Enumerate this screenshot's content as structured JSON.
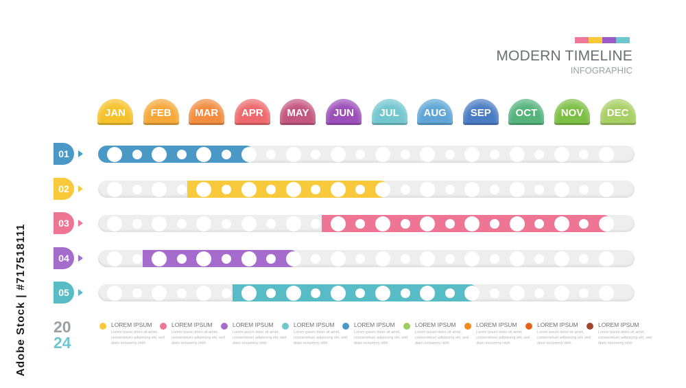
{
  "stock_id": "Adobe Stock | #717518111",
  "header": {
    "title": "MODERN TIMELINE",
    "subtitle": "INFOGRAPHIC",
    "color_strip": [
      "#f0789a",
      "#f9c93c",
      "#9b5cc9",
      "#6ec6cf"
    ]
  },
  "months": [
    {
      "label": "JAN",
      "color": "#f6c22c"
    },
    {
      "label": "FEB",
      "color": "#f6a83a"
    },
    {
      "label": "MAR",
      "color": "#f28c3e"
    },
    {
      "label": "APR",
      "color": "#ee6a6e"
    },
    {
      "label": "MAY",
      "color": "#c4577e"
    },
    {
      "label": "JUN",
      "color": "#9b4fb8"
    },
    {
      "label": "JUL",
      "color": "#74c6cf"
    },
    {
      "label": "AUG",
      "color": "#5fa6d6"
    },
    {
      "label": "SEP",
      "color": "#4a7cc4"
    },
    {
      "label": "OCT",
      "color": "#55b37c"
    },
    {
      "label": "NOV",
      "color": "#7dbf45"
    },
    {
      "label": "DEC",
      "color": "#a8cf63"
    }
  ],
  "rows": [
    {
      "label": "01",
      "color": "#4a98c6",
      "start_month": 0,
      "end_month": 3
    },
    {
      "label": "02",
      "color": "#f8c93a",
      "start_month": 2,
      "end_month": 6
    },
    {
      "label": "03",
      "color": "#ee7593",
      "start_month": 5,
      "end_month": 11
    },
    {
      "label": "04",
      "color": "#a66ccd",
      "start_month": 1,
      "end_month": 4
    },
    {
      "label": "05",
      "color": "#58bcc6",
      "start_month": 3,
      "end_month": 8
    }
  ],
  "year": {
    "top": "20",
    "bottom": "24",
    "top_color": "#9aa0a6",
    "bottom_color": "#6ec6cf"
  },
  "legend": [
    {
      "title": "LOREM IPSUM",
      "text": "Lorem ipsum dolor sit amet, consectetuer adipiscing elit, sed diam nonummy nibh",
      "color": "#f8c93a"
    },
    {
      "title": "LOREM IPSUM",
      "text": "Lorem ipsum dolor sit amet, consectetuer adipiscing elit, sed diam nonummy nibh",
      "color": "#ee7593"
    },
    {
      "title": "LOREM IPSUM",
      "text": "Lorem ipsum dolor sit amet, consectetuer adipiscing elit, sed diam nonummy nibh",
      "color": "#a66ccd"
    },
    {
      "title": "LOREM IPSUM",
      "text": "Lorem ipsum dolor sit amet, consectetuer adipiscing elit, sed diam nonummy nibh",
      "color": "#6ec6cf"
    },
    {
      "title": "LOREM IPSUM",
      "text": "Lorem ipsum dolor sit amet, consectetuer adipiscing elit, sed diam nonummy nibh",
      "color": "#4a98c6"
    },
    {
      "title": "LOREM IPSUM",
      "text": "Lorem ipsum dolor sit amet, consectetuer adipiscing elit, sed diam nonummy nibh",
      "color": "#9ccd62"
    },
    {
      "title": "LOREM IPSUM",
      "text": "Lorem ipsum dolor sit amet, consectetuer adipiscing elit, sed diam nonummy nibh",
      "color": "#f28c1e"
    },
    {
      "title": "LOREM IPSUM",
      "text": "Lorem ipsum dolor sit amet, consectetuer adipiscing elit, sed diam nonummy nibh",
      "color": "#e8621e"
    },
    {
      "title": "LOREM IPSUM",
      "text": "Lorem ipsum dolor sit amet, consectetuer adipiscing elit, sed diam nonummy nibh",
      "color": "#a0442e"
    }
  ]
}
